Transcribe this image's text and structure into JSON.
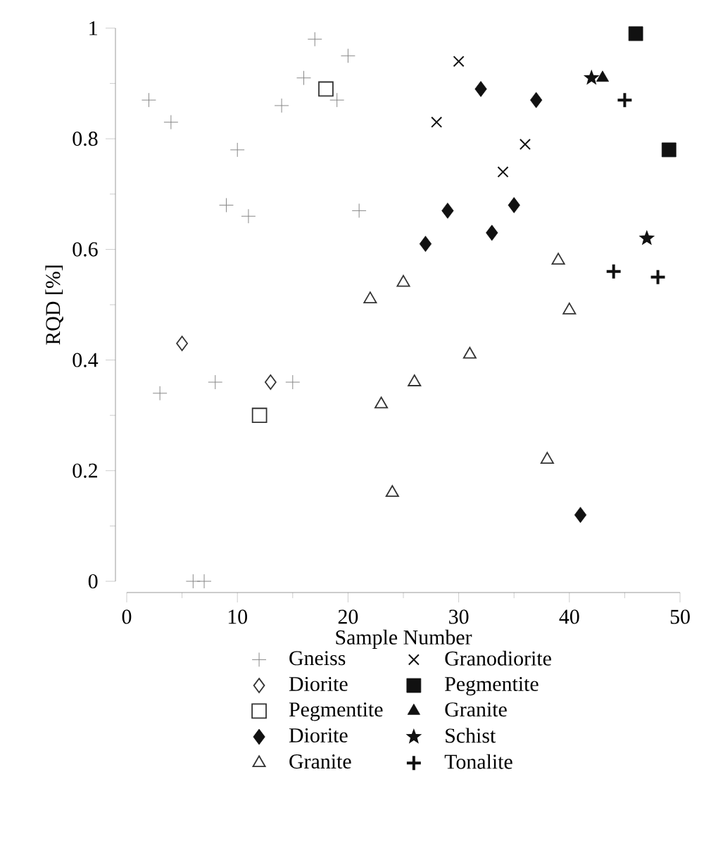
{
  "chart_data": {
    "type": "scatter",
    "xlabel": "Sample Number",
    "ylabel": "RQD [%]",
    "xlim": [
      0,
      50
    ],
    "ylim": [
      0,
      1
    ],
    "xticks": [
      0,
      10,
      20,
      30,
      40,
      50
    ],
    "yticks": [
      0,
      0.2,
      0.4,
      0.6,
      0.8,
      1
    ],
    "legend": "bottom",
    "grid": false,
    "series": [
      {
        "name": "Gneiss",
        "color": "#888888",
        "marker": "plus",
        "x": [
          2,
          3,
          4,
          6,
          7,
          8,
          9,
          10,
          11,
          14,
          15,
          16,
          17,
          19,
          20,
          21
        ],
        "values": [
          0.87,
          0.34,
          0.83,
          0,
          0,
          0.36,
          0.68,
          0.78,
          0.66,
          0.86,
          0.36,
          0.91,
          0.98,
          0.87,
          0.95,
          0.67
        ]
      },
      {
        "name": "Diorite",
        "color": "#333333",
        "marker": "diamond",
        "x": [
          5,
          13
        ],
        "values": [
          0.43,
          0.36
        ]
      },
      {
        "name": "Pegmentite",
        "color": "#333333",
        "marker": "square",
        "x": [
          12,
          18
        ],
        "values": [
          0.3,
          0.89
        ]
      },
      {
        "name": "Diorite",
        "color": "#111111",
        "marker": "diamond*",
        "x": [
          27,
          29,
          32,
          33,
          35,
          37,
          41
        ],
        "values": [
          0.61,
          0.67,
          0.89,
          0.63,
          0.68,
          0.87,
          0.12
        ]
      },
      {
        "name": "Granite",
        "color": "#333333",
        "marker": "triangle",
        "x": [
          22,
          23,
          24,
          25,
          26,
          31,
          38,
          39,
          40
        ],
        "values": [
          0.51,
          0.32,
          0.16,
          0.54,
          0.36,
          0.41,
          0.22,
          0.58,
          0.49
        ]
      },
      {
        "name": "Granodiorite",
        "color": "#111111",
        "marker": "x",
        "x": [
          28,
          30,
          34,
          36
        ],
        "values": [
          0.83,
          0.94,
          0.74,
          0.79
        ]
      },
      {
        "name": "Pegmentite",
        "color": "#111111",
        "marker": "square*",
        "x": [
          46,
          49
        ],
        "values": [
          0.99,
          0.78
        ]
      },
      {
        "name": "Granite",
        "color": "#111111",
        "marker": "triangle*",
        "x": [
          43
        ],
        "values": [
          0.91
        ]
      },
      {
        "name": "Schist",
        "color": "#111111",
        "marker": "star",
        "x": [
          42,
          47
        ],
        "values": [
          0.91,
          0.62
        ]
      },
      {
        "name": "Tonalite",
        "color": "#111111",
        "marker": "plus",
        "x": [
          44,
          45,
          48
        ],
        "values": [
          0.56,
          0.87,
          0.55
        ]
      }
    ]
  }
}
